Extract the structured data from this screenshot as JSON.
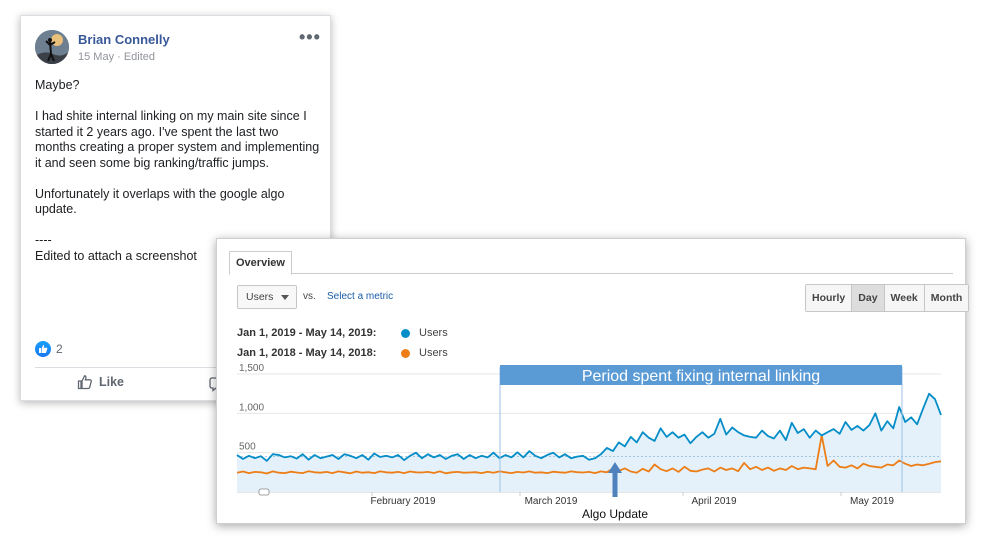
{
  "post": {
    "author": "Brian Connelly",
    "meta": "15 May · Edited",
    "paragraphs": [
      "Maybe?",
      "I had shite internal linking on my main site since I started it 2 years ago. I've spent the last two months creating a proper system and implementing it and seen some big ranking/traffic jumps.",
      "Unfortunately it overlaps with the google algo update.",
      "----\nEdited to attach a screenshot"
    ],
    "reaction_count": "2",
    "like_label": "Like",
    "icons": {
      "more": "ellipsis-icon",
      "reaction": "like-reaction-icon",
      "like": "thumbs-up-icon",
      "comment": "comment-icon"
    }
  },
  "analytics": {
    "tab": "Overview",
    "metric": "Users",
    "vs": "vs.",
    "select_metric": "Select a metric",
    "granularity": [
      "Hourly",
      "Day",
      "Week",
      "Month"
    ],
    "active_granularity": "Day",
    "legend": [
      {
        "range": "Jan 1, 2019 - May 14, 2019:",
        "name": "Users",
        "color": "#058dc7"
      },
      {
        "range": "Jan 1, 2018 - May 14, 2018:",
        "name": "Users",
        "color": "#ed7e17"
      }
    ],
    "annotations": {
      "banner": "Period spent fixing internal linking",
      "banner_color": "#5b9bd5",
      "arrow_label": "Algo Update"
    }
  },
  "chart_data": {
    "type": "line",
    "x_labels": [
      "February 2019",
      "March 2019",
      "April 2019",
      "May 2019"
    ],
    "y_ticks": [
      "1,500",
      "1,000",
      "500"
    ],
    "ylim": [
      0,
      1500
    ],
    "colors": {
      "2019": "#058dc7",
      "2018": "#ed7e17",
      "fill_2019": "#e4f1fa"
    },
    "series": [
      {
        "name": "Users",
        "period": "Jan 1, 2019 - May 14, 2019",
        "values": [
          470,
          420,
          460,
          430,
          455,
          395,
          480,
          470,
          440,
          455,
          425,
          480,
          410,
          470,
          430,
          450,
          470,
          420,
          480,
          460,
          430,
          470,
          410,
          490,
          445,
          460,
          440,
          470,
          405,
          460,
          500,
          430,
          480,
          440,
          470,
          420,
          460,
          480,
          420,
          470,
          430,
          460,
          440,
          500,
          430,
          470,
          440,
          505,
          440,
          520,
          460,
          430,
          470,
          500,
          440,
          480,
          430,
          450,
          460,
          410,
          430,
          480,
          560,
          520,
          630,
          580,
          700,
          630,
          760,
          690,
          650,
          810,
          700,
          760,
          690,
          730,
          620,
          700,
          760,
          690,
          740,
          930,
          730,
          820,
          760,
          720,
          700,
          690,
          780,
          710,
          680,
          780,
          660,
          880,
          750,
          800,
          690,
          780,
          720,
          760,
          800,
          740,
          890,
          790,
          840,
          780,
          850,
          1000,
          780,
          900,
          810,
          1080,
          890,
          950,
          860,
          1060,
          1250,
          1180,
          980
        ]
      },
      {
        "name": "Users",
        "period": "Jan 1, 2018 - May 14, 2018",
        "values": [
          245,
          260,
          240,
          255,
          250,
          235,
          262,
          245,
          240,
          258,
          248,
          240,
          265,
          250,
          245,
          255,
          240,
          262,
          250,
          238,
          260,
          245,
          252,
          240,
          262,
          250,
          245,
          255,
          240,
          260,
          250,
          248,
          255,
          242,
          262,
          238,
          250,
          255,
          245,
          248,
          252,
          240,
          258,
          245,
          262,
          250,
          240,
          255,
          248,
          262,
          245,
          250,
          240,
          258,
          250,
          245,
          262,
          252,
          248,
          255,
          240,
          262,
          250,
          300,
          270,
          300,
          260,
          245,
          295,
          260,
          350,
          290,
          265,
          300,
          255,
          320,
          270,
          260,
          285,
          300,
          260,
          310,
          280,
          300,
          265,
          370,
          290,
          320,
          280,
          310,
          270,
          300,
          280,
          330,
          290,
          310,
          300,
          290,
          720,
          330,
          400,
          320,
          310,
          340,
          300,
          360,
          330,
          320,
          310,
          350,
          340,
          400,
          360,
          330,
          350,
          340,
          360,
          380,
          390
        ]
      }
    ]
  }
}
